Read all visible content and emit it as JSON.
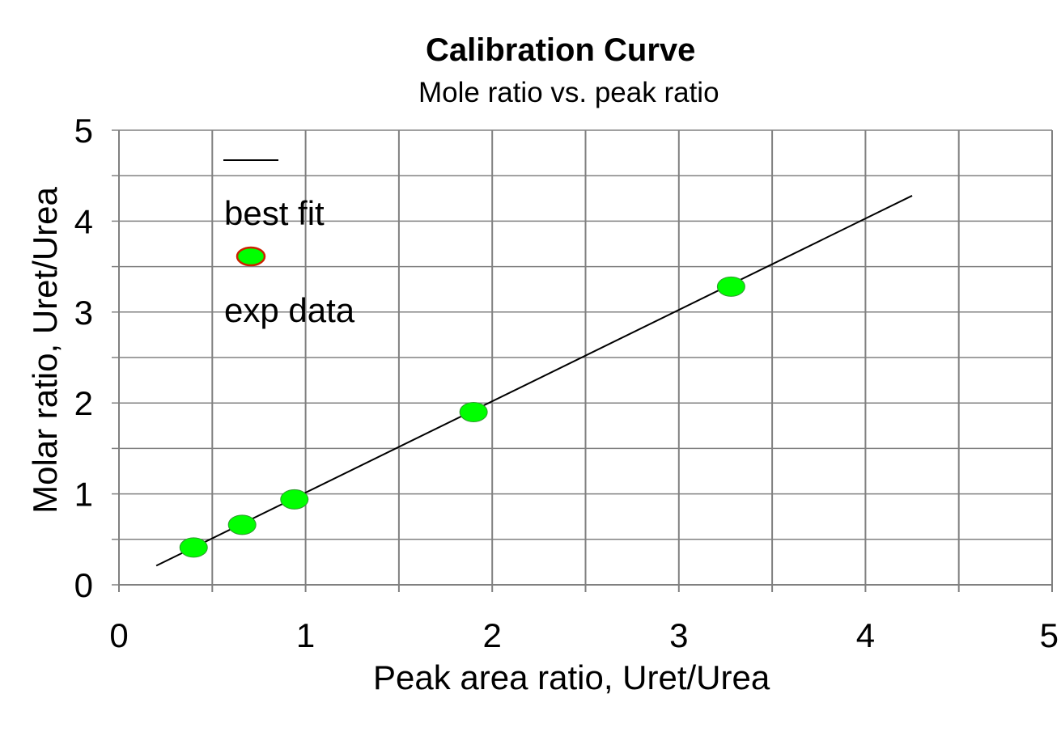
{
  "chart_data": {
    "type": "scatter",
    "title": "Calibration Curve",
    "subtitle": "Mole ratio vs. peak ratio",
    "xlabel": "Peak area ratio, Uret/Urea",
    "ylabel": "Molar ratio,  Uret/Urea",
    "xlim": [
      0,
      5
    ],
    "ylim": [
      0,
      5
    ],
    "x_ticks": [
      "0",
      "1",
      "2",
      "3",
      "4",
      "5"
    ],
    "y_ticks": [
      "0",
      "1",
      "2",
      "3",
      "4",
      "5"
    ],
    "grid": true,
    "legend_position": "top-left",
    "series": [
      {
        "name": "best fit",
        "kind": "line",
        "color": "#000000",
        "x": [
          0.2,
          4.25
        ],
        "y": [
          0.21,
          4.28
        ]
      },
      {
        "name": "exp data",
        "kind": "scatter",
        "color": "#00ff00",
        "edge_color": "#cc2200",
        "x": [
          0.4,
          0.66,
          0.94,
          1.9,
          3.28
        ],
        "y": [
          0.41,
          0.66,
          0.94,
          1.9,
          3.28
        ]
      }
    ]
  }
}
